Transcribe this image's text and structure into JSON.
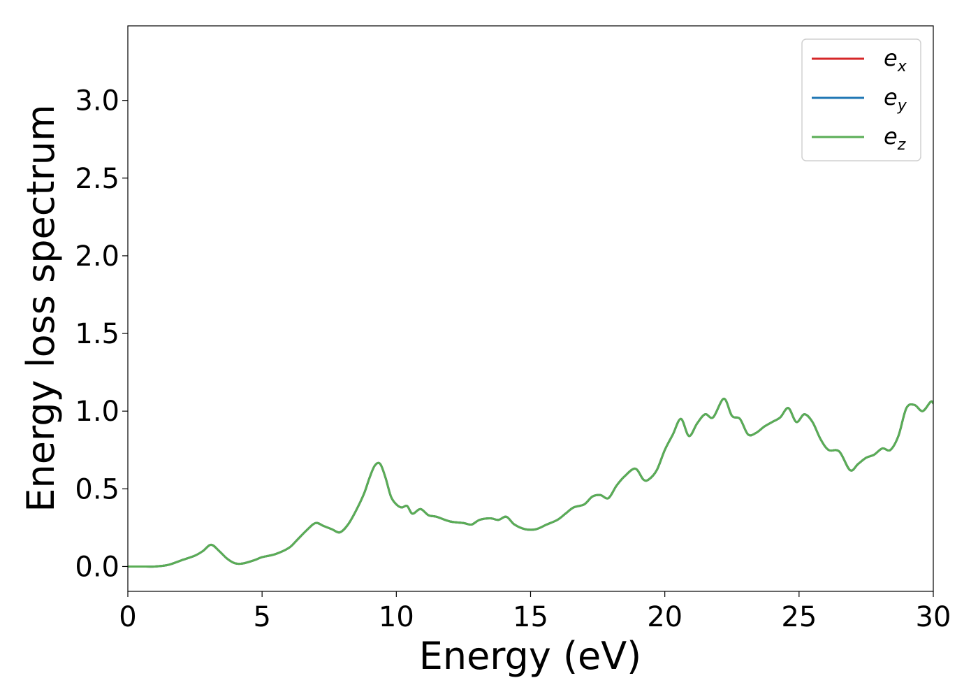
{
  "chart_data": {
    "type": "line",
    "title": "",
    "xlabel": "Energy (eV)",
    "ylabel": "Energy loss spectrum",
    "xlim": [
      0,
      30
    ],
    "ylim": [
      -0.16,
      3.48
    ],
    "xticks": [
      0,
      5,
      10,
      15,
      20,
      25,
      30
    ],
    "yticks": [
      0.0,
      0.5,
      1.0,
      1.5,
      2.0,
      2.5,
      3.0
    ],
    "xtick_labels": [
      "0",
      "5",
      "10",
      "15",
      "20",
      "25",
      "30"
    ],
    "ytick_labels": [
      "0.0",
      "0.5",
      "1.0",
      "1.5",
      "2.0",
      "2.5",
      "3.0"
    ],
    "grid": false,
    "legend_position": "top-right",
    "x": [
      0,
      0.5,
      1.0,
      1.5,
      2.0,
      2.5,
      2.8,
      3.1,
      3.4,
      3.7,
      4.0,
      4.3,
      4.7,
      5.0,
      5.5,
      6.0,
      6.3,
      6.7,
      7.0,
      7.3,
      7.6,
      7.9,
      8.2,
      8.5,
      8.8,
      9.0,
      9.2,
      9.4,
      9.6,
      9.8,
      10.0,
      10.2,
      10.4,
      10.6,
      10.9,
      11.2,
      11.5,
      12.0,
      12.5,
      12.8,
      13.1,
      13.5,
      13.8,
      14.1,
      14.4,
      14.8,
      15.2,
      15.6,
      16.0,
      16.3,
      16.6,
      17.0,
      17.3,
      17.6,
      17.9,
      18.2,
      18.5,
      18.9,
      19.2,
      19.4,
      19.7,
      20.0,
      20.3,
      20.6,
      20.9,
      21.2,
      21.5,
      21.8,
      22.2,
      22.5,
      22.8,
      23.1,
      23.4,
      23.7,
      24.0,
      24.3,
      24.6,
      24.9,
      25.2,
      25.5,
      25.8,
      26.1,
      26.5,
      26.9,
      27.2,
      27.5,
      27.8,
      28.1,
      28.4,
      28.7,
      29.0,
      29.3,
      29.6,
      29.9,
      30.0
    ],
    "series": [
      {
        "name": "e_x",
        "color": "#d62728",
        "values": [
          0.0,
          0.0,
          0.0,
          0.01,
          0.04,
          0.07,
          0.1,
          0.14,
          0.1,
          0.05,
          0.02,
          0.02,
          0.04,
          0.06,
          0.08,
          0.12,
          0.17,
          0.24,
          0.28,
          0.26,
          0.24,
          0.22,
          0.27,
          0.36,
          0.47,
          0.57,
          0.65,
          0.66,
          0.57,
          0.45,
          0.4,
          0.38,
          0.39,
          0.34,
          0.37,
          0.33,
          0.32,
          0.29,
          0.28,
          0.27,
          0.3,
          0.31,
          0.3,
          0.32,
          0.27,
          0.24,
          0.24,
          0.27,
          0.3,
          0.34,
          0.38,
          0.4,
          0.45,
          0.46,
          0.44,
          0.52,
          0.58,
          0.63,
          0.56,
          0.56,
          0.62,
          0.75,
          0.85,
          0.95,
          0.84,
          0.92,
          0.98,
          0.96,
          1.08,
          0.97,
          0.95,
          0.85,
          0.86,
          0.9,
          0.93,
          0.96,
          1.02,
          0.93,
          0.98,
          0.93,
          0.82,
          0.75,
          0.74,
          0.62,
          0.66,
          0.7,
          0.72,
          0.76,
          0.75,
          0.84,
          1.02,
          1.04,
          1.0,
          1.06,
          1.05
        ]
      },
      {
        "name": "e_y",
        "color": "#1f77b4",
        "values": [
          0.0,
          0.0,
          0.0,
          0.01,
          0.04,
          0.07,
          0.1,
          0.14,
          0.1,
          0.05,
          0.02,
          0.02,
          0.04,
          0.06,
          0.08,
          0.12,
          0.17,
          0.24,
          0.28,
          0.26,
          0.24,
          0.22,
          0.27,
          0.36,
          0.47,
          0.57,
          0.65,
          0.66,
          0.57,
          0.45,
          0.4,
          0.38,
          0.39,
          0.34,
          0.37,
          0.33,
          0.32,
          0.29,
          0.28,
          0.27,
          0.3,
          0.31,
          0.3,
          0.32,
          0.27,
          0.24,
          0.24,
          0.27,
          0.3,
          0.34,
          0.38,
          0.4,
          0.45,
          0.46,
          0.44,
          0.52,
          0.58,
          0.63,
          0.56,
          0.56,
          0.62,
          0.75,
          0.85,
          0.95,
          0.84,
          0.92,
          0.98,
          0.96,
          1.08,
          0.97,
          0.95,
          0.85,
          0.86,
          0.9,
          0.93,
          0.96,
          1.02,
          0.93,
          0.98,
          0.93,
          0.82,
          0.75,
          0.74,
          0.62,
          0.66,
          0.7,
          0.72,
          0.76,
          0.75,
          0.84,
          1.02,
          1.04,
          1.0,
          1.06,
          1.05
        ]
      },
      {
        "name": "e_z",
        "color": "#5aad55",
        "values": [
          0.0,
          0.0,
          0.0,
          0.01,
          0.04,
          0.07,
          0.1,
          0.14,
          0.1,
          0.05,
          0.02,
          0.02,
          0.04,
          0.06,
          0.08,
          0.12,
          0.17,
          0.24,
          0.28,
          0.26,
          0.24,
          0.22,
          0.27,
          0.36,
          0.47,
          0.57,
          0.65,
          0.66,
          0.57,
          0.45,
          0.4,
          0.38,
          0.39,
          0.34,
          0.37,
          0.33,
          0.32,
          0.29,
          0.28,
          0.27,
          0.3,
          0.31,
          0.3,
          0.32,
          0.27,
          0.24,
          0.24,
          0.27,
          0.3,
          0.34,
          0.38,
          0.4,
          0.45,
          0.46,
          0.44,
          0.52,
          0.58,
          0.63,
          0.56,
          0.56,
          0.62,
          0.75,
          0.85,
          0.95,
          0.84,
          0.92,
          0.98,
          0.96,
          1.08,
          0.97,
          0.95,
          0.85,
          0.86,
          0.9,
          0.93,
          0.96,
          1.02,
          0.93,
          0.98,
          0.93,
          0.82,
          0.75,
          0.74,
          0.62,
          0.66,
          0.7,
          0.72,
          0.76,
          0.75,
          0.84,
          1.02,
          1.04,
          1.0,
          1.06,
          1.05
        ]
      }
    ],
    "legend": [
      {
        "base": "e",
        "sub": "x"
      },
      {
        "base": "e",
        "sub": "y"
      },
      {
        "base": "e",
        "sub": "z"
      }
    ]
  }
}
